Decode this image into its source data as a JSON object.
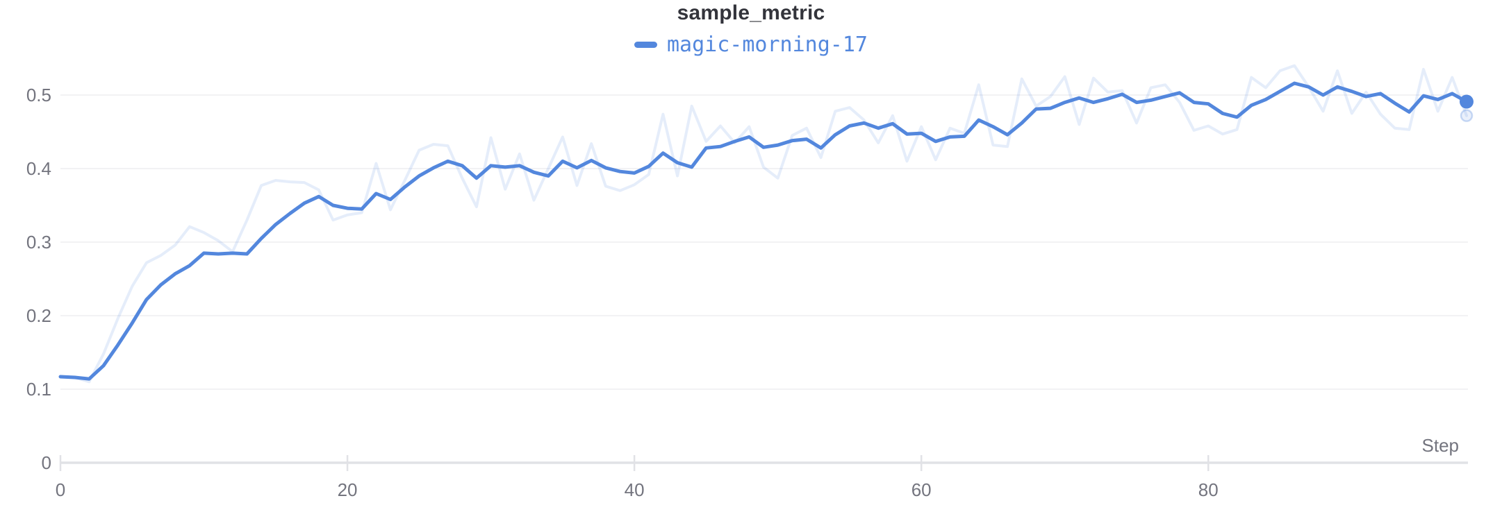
{
  "title": "sample_metric",
  "legend": {
    "label": "magic-morning-17"
  },
  "colors": {
    "accent": "#5387DD",
    "raw_opacity": 0.15,
    "grid": "#EDEDF1",
    "axis": "#E1E2E6",
    "tick_text": "#73747E",
    "title_text": "#33343B"
  },
  "axes": {
    "x": {
      "label": "Step",
      "ticks": [
        0,
        20,
        40,
        60,
        80
      ]
    },
    "y": {
      "ticks": [
        {
          "label": "0",
          "value": 0
        },
        {
          "label": "0.1",
          "value": 0.1
        },
        {
          "label": "0.2",
          "value": 0.2
        },
        {
          "label": "0.3",
          "value": 0.3
        },
        {
          "label": "0.4",
          "value": 0.4
        },
        {
          "label": "0.5",
          "value": 0.5
        }
      ]
    }
  },
  "chart_data": {
    "type": "line",
    "title": "sample_metric",
    "xlabel": "Step",
    "ylabel": "",
    "x_start": 0,
    "x_step": 1,
    "n_points": 99,
    "x_ticks": [
      0,
      20,
      40,
      60,
      80
    ],
    "xlim": [
      0,
      98.1
    ],
    "ylim": [
      0,
      0.557
    ],
    "grid": true,
    "legend_position": "top-center",
    "series": [
      {
        "name": "magic-morning-17",
        "role": "smoothed",
        "color": "#5387DD",
        "opacity": 1,
        "z": 1,
        "end_marker": "dot",
        "values": [
          0.117,
          0.116,
          0.114,
          0.132,
          0.16,
          0.19,
          0.222,
          0.242,
          0.257,
          0.268,
          0.285,
          0.284,
          0.285,
          0.284,
          0.305,
          0.324,
          0.339,
          0.353,
          0.362,
          0.35,
          0.346,
          0.345,
          0.366,
          0.358,
          0.375,
          0.39,
          0.401,
          0.41,
          0.404,
          0.387,
          0.404,
          0.402,
          0.404,
          0.395,
          0.39,
          0.41,
          0.401,
          0.411,
          0.401,
          0.396,
          0.394,
          0.403,
          0.421,
          0.408,
          0.402,
          0.428,
          0.43,
          0.437,
          0.443,
          0.429,
          0.432,
          0.438,
          0.44,
          0.428,
          0.446,
          0.458,
          0.462,
          0.455,
          0.461,
          0.447,
          0.448,
          0.437,
          0.443,
          0.444,
          0.466,
          0.457,
          0.446,
          0.462,
          0.481,
          0.482,
          0.49,
          0.496,
          0.49,
          0.495,
          0.501,
          0.49,
          0.493,
          0.498,
          0.503,
          0.49,
          0.488,
          0.475,
          0.47,
          0.486,
          0.494,
          0.505,
          0.516,
          0.511,
          0.5,
          0.511,
          0.505,
          0.498,
          0.502,
          0.489,
          0.477,
          0.499,
          0.494,
          0.502,
          0.491
        ]
      },
      {
        "name": "magic-morning-17",
        "role": "original",
        "color": "#5387DD",
        "opacity": 0.15,
        "z": 0,
        "end_marker": "ring",
        "values": [
          0.117,
          0.116,
          0.11,
          0.148,
          0.196,
          0.24,
          0.272,
          0.282,
          0.296,
          0.321,
          0.313,
          0.302,
          0.287,
          0.33,
          0.377,
          0.384,
          0.382,
          0.381,
          0.371,
          0.33,
          0.337,
          0.34,
          0.407,
          0.344,
          0.384,
          0.425,
          0.433,
          0.431,
          0.387,
          0.348,
          0.442,
          0.372,
          0.42,
          0.357,
          0.4,
          0.443,
          0.377,
          0.434,
          0.376,
          0.37,
          0.378,
          0.392,
          0.474,
          0.39,
          0.485,
          0.437,
          0.458,
          0.435,
          0.457,
          0.402,
          0.387,
          0.445,
          0.455,
          0.415,
          0.478,
          0.483,
          0.466,
          0.435,
          0.472,
          0.41,
          0.457,
          0.412,
          0.455,
          0.448,
          0.514,
          0.432,
          0.43,
          0.522,
          0.485,
          0.498,
          0.525,
          0.46,
          0.523,
          0.504,
          0.506,
          0.462,
          0.51,
          0.514,
          0.49,
          0.452,
          0.458,
          0.447,
          0.453,
          0.524,
          0.51,
          0.533,
          0.54,
          0.511,
          0.478,
          0.533,
          0.475,
          0.504,
          0.474,
          0.455,
          0.453,
          0.535,
          0.478,
          0.524,
          0.472
        ]
      }
    ]
  }
}
